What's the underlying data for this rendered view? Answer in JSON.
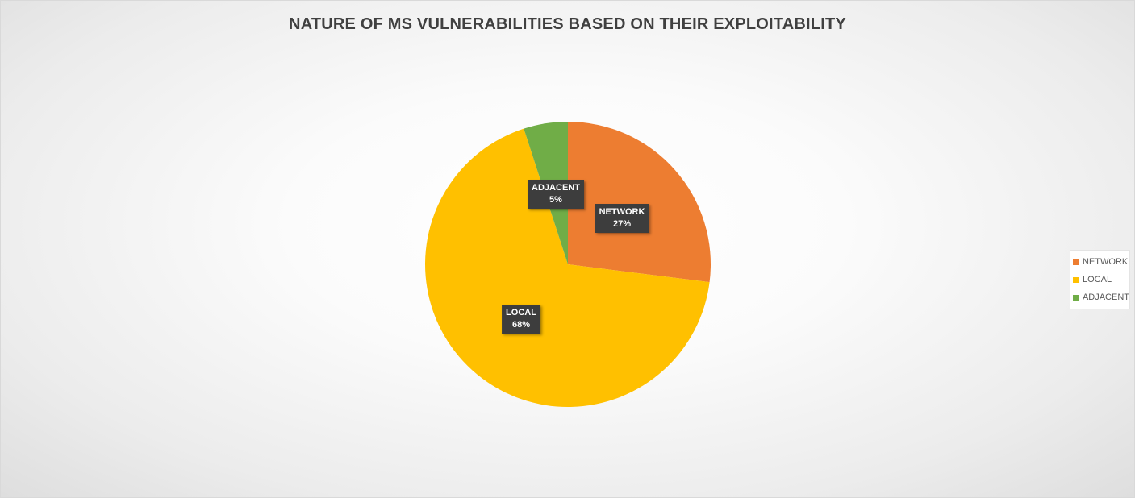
{
  "chart_data": {
    "type": "pie",
    "title": "NATURE OF MS VULNERABILITIES BASED ON THEIR EXPLOITABILITY",
    "categories": [
      "NETWORK",
      "LOCAL",
      "ADJACENT"
    ],
    "values": [
      27,
      68,
      5
    ],
    "data_labels": [
      {
        "name": "NETWORK",
        "value": "27%"
      },
      {
        "name": "LOCAL",
        "value": "68%"
      },
      {
        "name": "ADJACENT",
        "value": "5%"
      }
    ],
    "colors": [
      "#ed7d31",
      "#ffc000",
      "#70ad47"
    ],
    "start_angle": "12 o'clock, clockwise",
    "legend": {
      "position": "right",
      "items": [
        {
          "label": "NETWORK",
          "color": "#ed7d31"
        },
        {
          "label": "LOCAL",
          "color": "#ffc000"
        },
        {
          "label": "ADJACENT",
          "color": "#70ad47"
        }
      ]
    }
  }
}
